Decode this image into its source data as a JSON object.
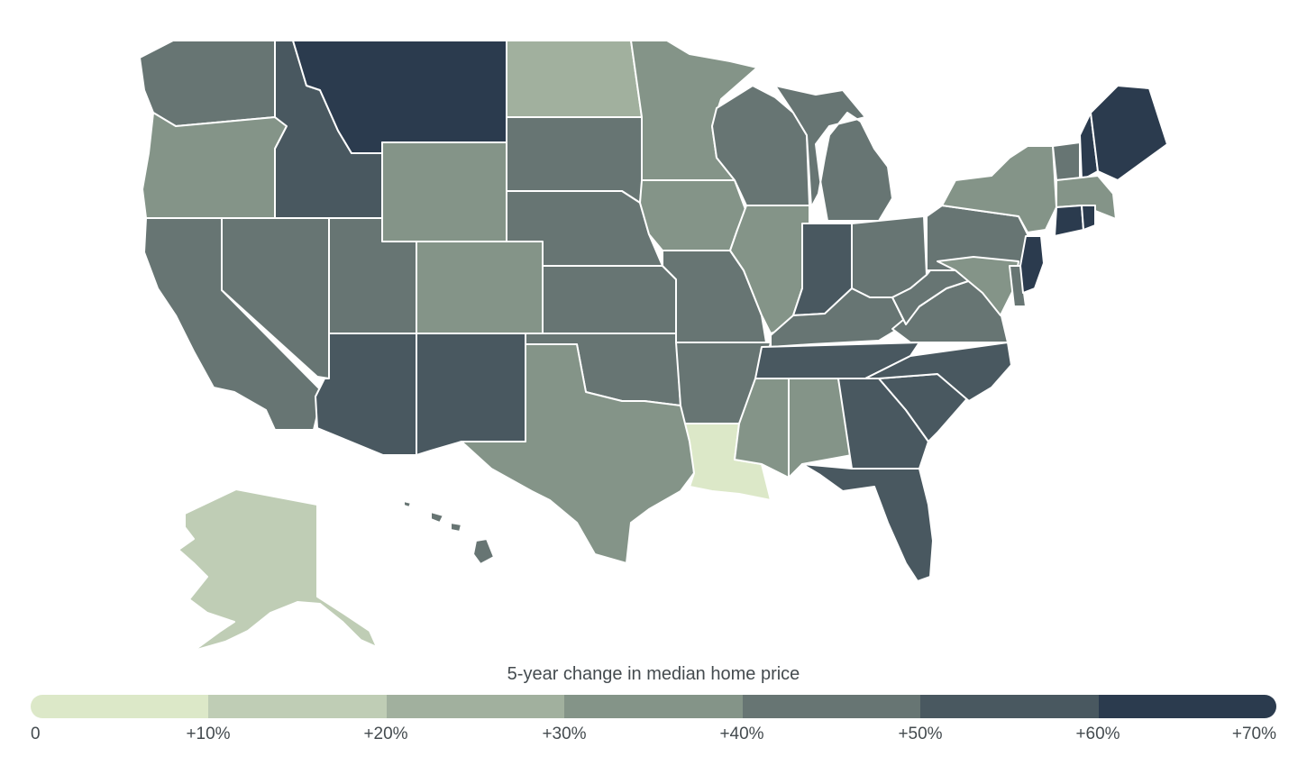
{
  "legend": {
    "title": "5-year change in median home price",
    "colors": [
      "#dce8c8",
      "#bfcdb5",
      "#a1b09e",
      "#849488",
      "#677573",
      "#495860",
      "#2b3b4e"
    ],
    "ticks": [
      "0",
      "+10%",
      "+20%",
      "+30%",
      "+40%",
      "+50%",
      "+60%",
      "+70%"
    ]
  },
  "states": {
    "WA": 4,
    "OR": 3,
    "CA": 4,
    "NV": 4,
    "ID": 5,
    "MT": 6,
    "WY": 3,
    "UT": 4,
    "CO": 3,
    "AZ": 5,
    "NM": 5,
    "ND": 2,
    "SD": 4,
    "NE": 4,
    "KS": 4,
    "OK": 4,
    "TX": 3,
    "MN": 3,
    "IA": 3,
    "MO": 4,
    "AR": 4,
    "LA": 0,
    "WI": 4,
    "IL": 3,
    "MI": 4,
    "IN": 5,
    "OH": 4,
    "KY": 4,
    "TN": 5,
    "MS": 3,
    "AL": 3,
    "GA": 5,
    "FL": 5,
    "SC": 5,
    "NC": 5,
    "VA": 4,
    "WV": 4,
    "PA": 4,
    "NY": 3,
    "ME": 6,
    "NH": 6,
    "VT": 4,
    "MA": 3,
    "RI": 6,
    "CT": 6,
    "NJ": 6,
    "DE": 4,
    "MD": 3,
    "AK": 1,
    "HI": 4
  }
}
